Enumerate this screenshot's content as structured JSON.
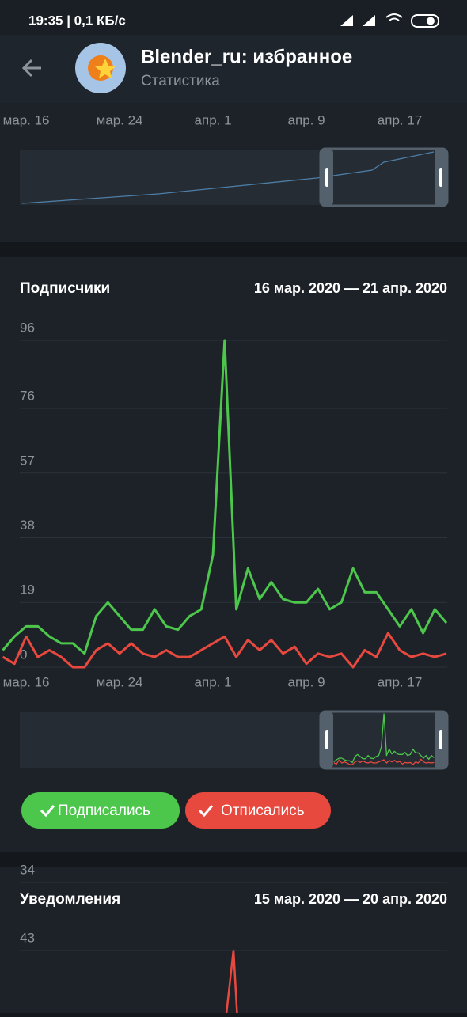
{
  "status_bar": {
    "time_speed": "19:35 | 0,1 КБ/с"
  },
  "header": {
    "title": "Blender_ru: избранное",
    "subtitle": "Статистика"
  },
  "top_chart": {
    "x_labels": [
      "мар. 16",
      "мар. 24",
      "апр. 1",
      "апр. 9",
      "апр. 17"
    ]
  },
  "chart_data": {
    "type": "line",
    "title": "Подписчики",
    "subtitle": "16 мар. 2020 — 21 апр. 2020",
    "x": [
      -2,
      -1,
      0,
      1,
      2,
      3,
      4,
      5,
      6,
      7,
      8,
      9,
      10,
      11,
      12,
      13,
      14,
      15,
      16,
      17,
      18,
      19,
      20,
      21,
      22,
      23,
      24,
      25,
      26,
      27,
      28,
      29,
      30,
      31,
      32,
      33,
      34,
      35,
      36
    ],
    "xlim": [
      -2.24,
      36.2
    ],
    "xticks": [
      {
        "value": 0,
        "label": "мар. 16"
      },
      {
        "value": 8,
        "label": "мар. 24"
      },
      {
        "value": 16,
        "label": "апр. 1"
      },
      {
        "value": 24,
        "label": "апр. 9"
      },
      {
        "value": 32,
        "label": "апр. 17"
      }
    ],
    "ylim": [
      0,
      96
    ],
    "yticks": [
      0,
      19,
      38,
      57,
      76,
      96
    ],
    "grid": true,
    "series": [
      {
        "name": "Подписались",
        "color": "#4cc74c",
        "values": [
          5,
          9,
          12,
          12,
          9,
          7,
          7,
          4,
          15,
          19,
          15,
          11,
          11,
          17,
          12,
          11,
          15,
          17,
          33,
          96,
          17,
          29,
          20,
          25,
          20,
          19,
          19,
          23,
          17,
          19,
          29,
          22,
          22,
          17,
          12,
          17,
          10,
          17,
          13
        ]
      },
      {
        "name": "Отписались",
        "color": "#e8493f",
        "values": [
          3,
          1,
          9,
          3,
          5,
          3,
          0,
          0,
          5,
          7,
          4,
          7,
          4,
          3,
          5,
          3,
          3,
          5,
          7,
          9,
          3,
          8,
          5,
          8,
          4,
          6,
          1,
          4,
          3,
          4,
          0,
          5,
          3,
          10,
          5,
          3,
          4,
          3,
          4
        ]
      }
    ]
  },
  "notifications": {
    "title": "Уведомления",
    "subtitle": "15 мар. 2020 — 20 апр. 2020",
    "yticks": [
      43,
      34
    ]
  }
}
